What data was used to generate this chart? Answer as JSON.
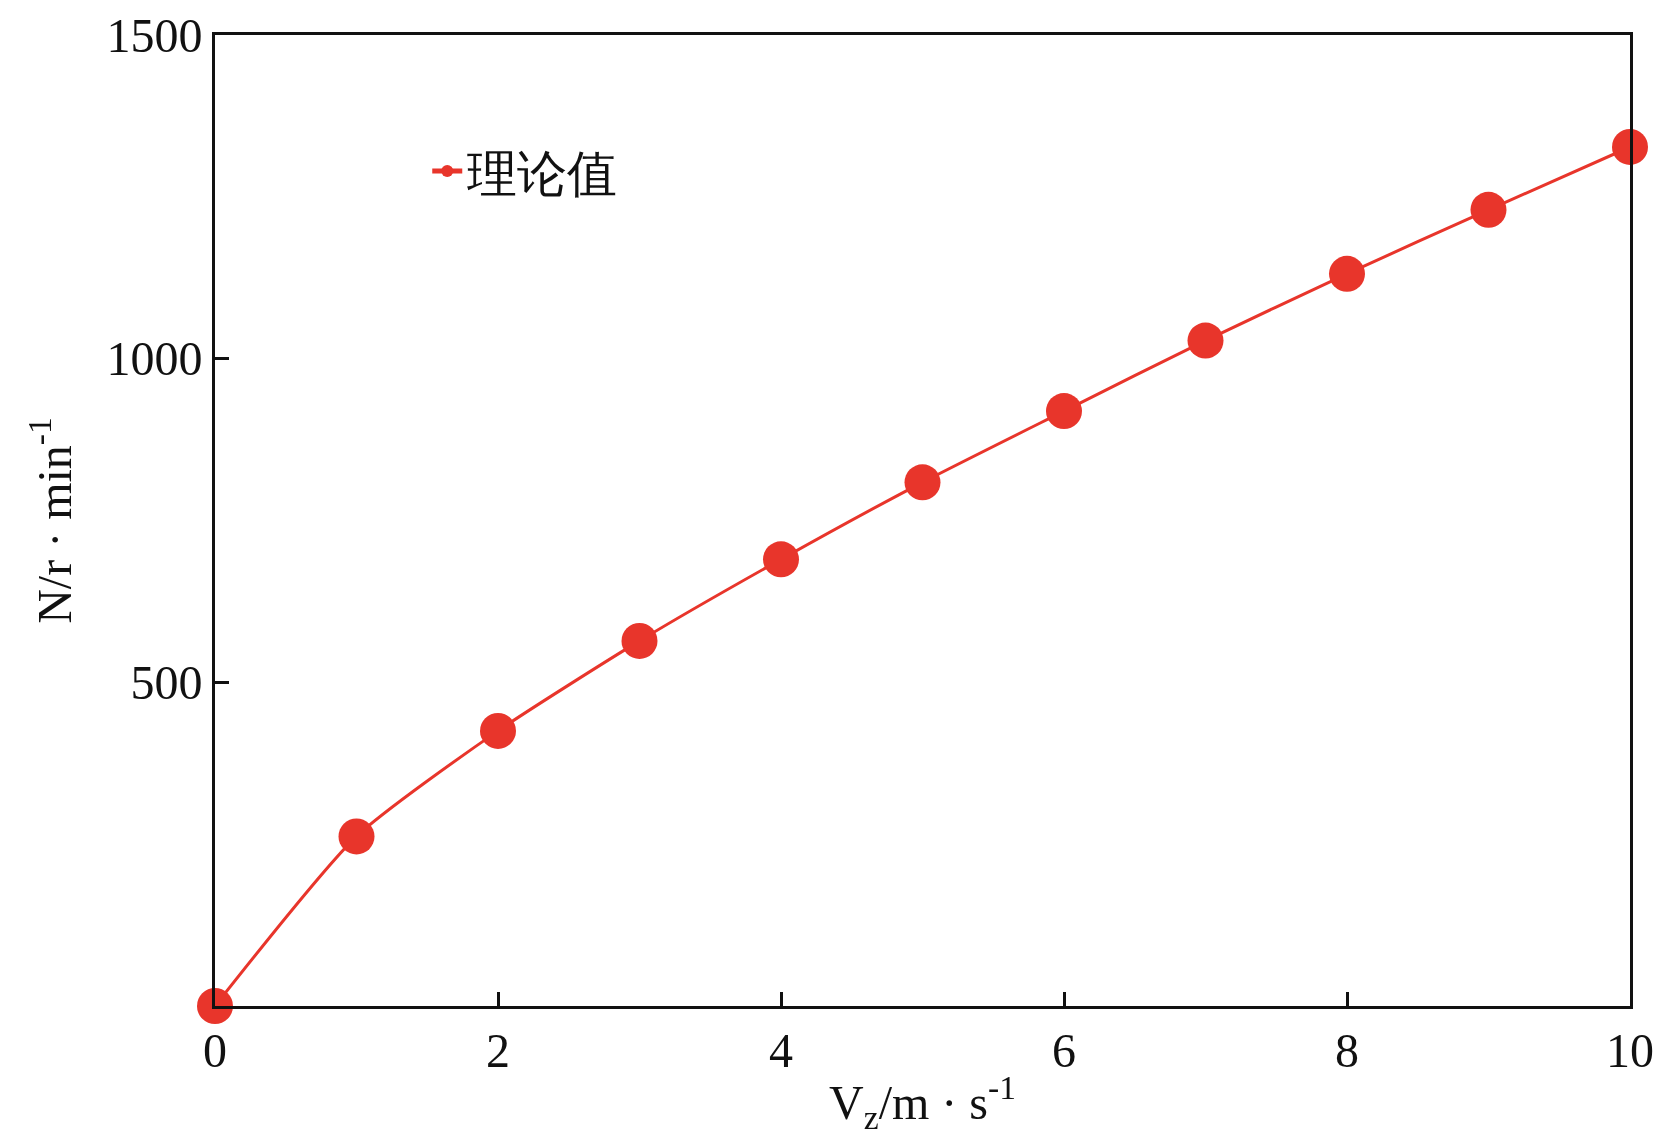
{
  "chart_data": {
    "type": "line",
    "xlabel": "V$_{z}$/m · s$^{-1}$",
    "ylabel": "N/r · min$^{-1}$",
    "x": [
      0,
      1,
      2,
      3,
      4,
      5,
      6,
      7,
      8,
      9,
      10
    ],
    "series": [
      {
        "name": "理论值",
        "color": "#e8352b",
        "values": [
          0,
          262,
          425,
          564,
          690,
          809,
          919,
          1028,
          1131,
          1230,
          1327
        ]
      }
    ],
    "xlim": [
      0,
      10
    ],
    "xticks": [
      0,
      2,
      4,
      6,
      8,
      10
    ],
    "ylim": [
      0,
      1500
    ],
    "yticks": [
      500,
      1000,
      1500
    ],
    "grid": false,
    "legend": "top left",
    "marker": "circle",
    "line_style": "solid"
  }
}
